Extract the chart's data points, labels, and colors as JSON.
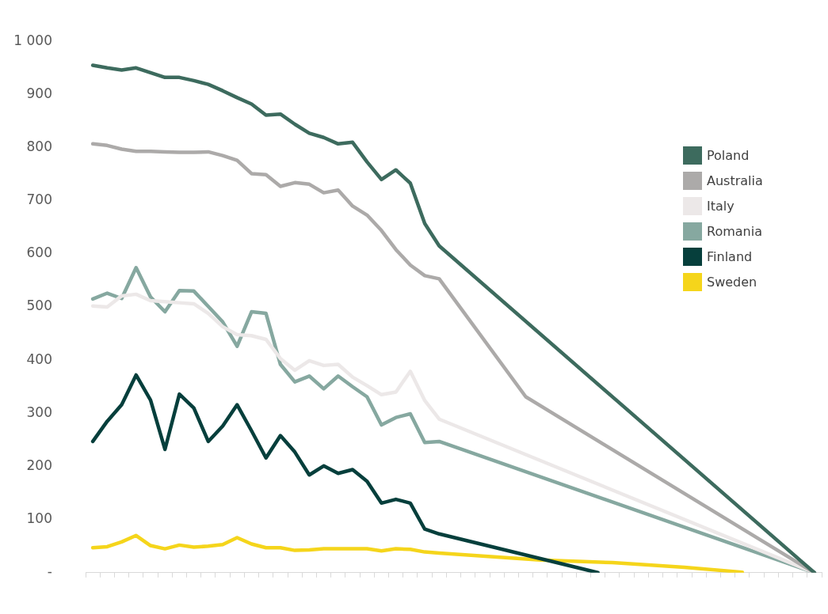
{
  "chart_data": {
    "type": "line",
    "categories": [
      null,
      null,
      null,
      null,
      null,
      null,
      null,
      null,
      null,
      null,
      null,
      null,
      null,
      null,
      null,
      null,
      null,
      null,
      null,
      null,
      null,
      null,
      null,
      null,
      null,
      null,
      null,
      null,
      null,
      null,
      null,
      null,
      null,
      null,
      null,
      null,
      null,
      null,
      null,
      null,
      null,
      null,
      null,
      null,
      null,
      null,
      null,
      null,
      null,
      null,
      null
    ],
    "series": [
      {
        "name": "Poland",
        "color": "#3d6b5e",
        "values": [
          955,
          950,
          946,
          950,
          941,
          932,
          932,
          926,
          919,
          907,
          894,
          882,
          861,
          863,
          844,
          827,
          819,
          807,
          810,
          773,
          740,
          758,
          733,
          657,
          615,
          null,
          null,
          null,
          null,
          null,
          null,
          null,
          null,
          null,
          null,
          null,
          null,
          null,
          null,
          null,
          null,
          null,
          null,
          null,
          null,
          null,
          null,
          null,
          null,
          null,
          0
        ]
      },
      {
        "name": "Australia",
        "color": "#acaaa9",
        "values": [
          807,
          804,
          797,
          793,
          793,
          792,
          791,
          791,
          792,
          785,
          776,
          751,
          749,
          727,
          734,
          731,
          715,
          720,
          690,
          673,
          644,
          608,
          579,
          559,
          553,
          null,
          null,
          null,
          null,
          null,
          331,
          null,
          null,
          null,
          null,
          null,
          null,
          null,
          null,
          null,
          null,
          null,
          null,
          null,
          null,
          null,
          null,
          null,
          null,
          null,
          0
        ]
      },
      {
        "name": "Italy",
        "color": "#ece8e8",
        "values": [
          502,
          500,
          521,
          524,
          512,
          510,
          508,
          506,
          488,
          463,
          448,
          446,
          439,
          403,
          381,
          399,
          390,
          392,
          368,
          352,
          335,
          340,
          379,
          324,
          289,
          null,
          null,
          null,
          null,
          null,
          null,
          null,
          null,
          null,
          null,
          null,
          null,
          null,
          null,
          null,
          null,
          null,
          null,
          null,
          null,
          null,
          null,
          null,
          null,
          null,
          0
        ]
      },
      {
        "name": "Romania",
        "color": "#86a8a0",
        "values": [
          515,
          526,
          516,
          574,
          519,
          491,
          531,
          530,
          501,
          472,
          426,
          491,
          488,
          392,
          359,
          370,
          346,
          370,
          350,
          331,
          278,
          292,
          299,
          245,
          247,
          null,
          null,
          null,
          null,
          null,
          null,
          null,
          null,
          null,
          null,
          null,
          null,
          null,
          null,
          null,
          null,
          null,
          null,
          null,
          null,
          null,
          null,
          null,
          null,
          null,
          0
        ]
      },
      {
        "name": "Finland",
        "color": "#063f3c",
        "values": [
          247,
          285,
          316,
          372,
          325,
          232,
          336,
          310,
          247,
          276,
          316,
          267,
          216,
          258,
          227,
          184,
          201,
          187,
          194,
          172,
          131,
          138,
          131,
          82,
          73,
          null,
          null,
          null,
          null,
          null,
          null,
          null,
          null,
          null,
          null,
          0,
          null,
          null,
          null,
          null,
          null,
          null,
          null,
          null,
          null,
          null,
          null,
          null,
          null,
          null,
          null
        ]
      },
      {
        "name": "Sweden",
        "color": "#f5d51b",
        "values": [
          47,
          49,
          58,
          70,
          51,
          45,
          52,
          48,
          50,
          53,
          66,
          54,
          47,
          47,
          42,
          43,
          45,
          45,
          45,
          45,
          41,
          45,
          44,
          39,
          37,
          null,
          null,
          null,
          null,
          null,
          null,
          24,
          null,
          null,
          null,
          null,
          19,
          null,
          null,
          null,
          null,
          10,
          null,
          null,
          null,
          1,
          null,
          null,
          null,
          null,
          null
        ]
      }
    ],
    "ylim": [
      0,
      1000
    ],
    "yticks": [
      {
        "value": 0,
        "label": "-"
      },
      100,
      200,
      300,
      400,
      500,
      600,
      700,
      800,
      900,
      {
        "value": 1000,
        "label": "1 000"
      }
    ],
    "grid": false,
    "legend": "right",
    "marker": "none",
    "line_style": "solid"
  }
}
